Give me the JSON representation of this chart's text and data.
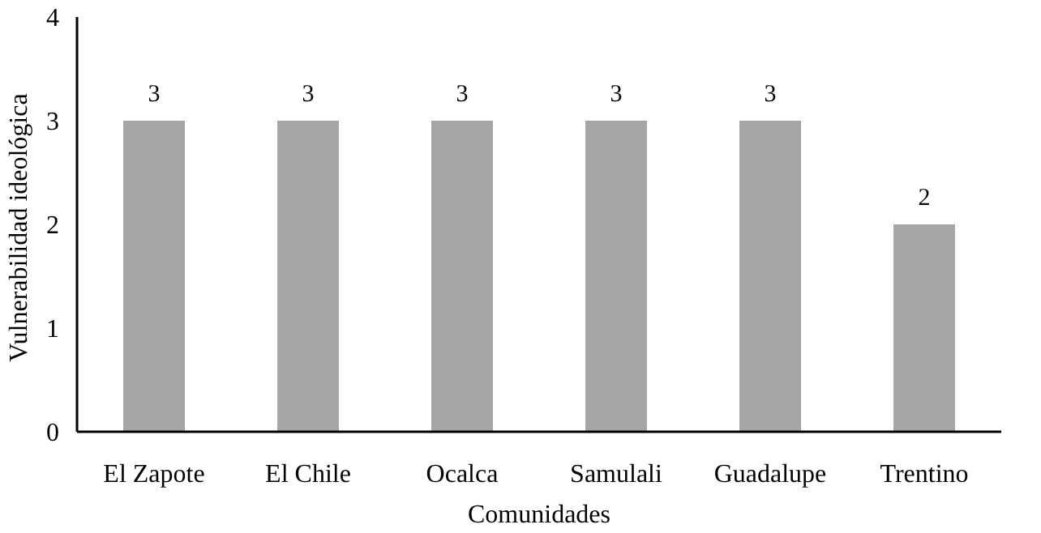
{
  "chart_data": {
    "type": "bar",
    "xlabel": "Comunidades",
    "ylabel": "Vulnerabilidad  ideológica",
    "categories": [
      "El Zapote",
      "El Chile",
      "Ocalca",
      "Samulali",
      "Guadalupe",
      "Trentino"
    ],
    "values": [
      3,
      3,
      3,
      3,
      3,
      2
    ],
    "color": "#a5a5a5",
    "ylim": [
      0,
      4
    ],
    "yticks": [
      0,
      1,
      2,
      3,
      4
    ],
    "data_labels": true,
    "grid": false
  }
}
